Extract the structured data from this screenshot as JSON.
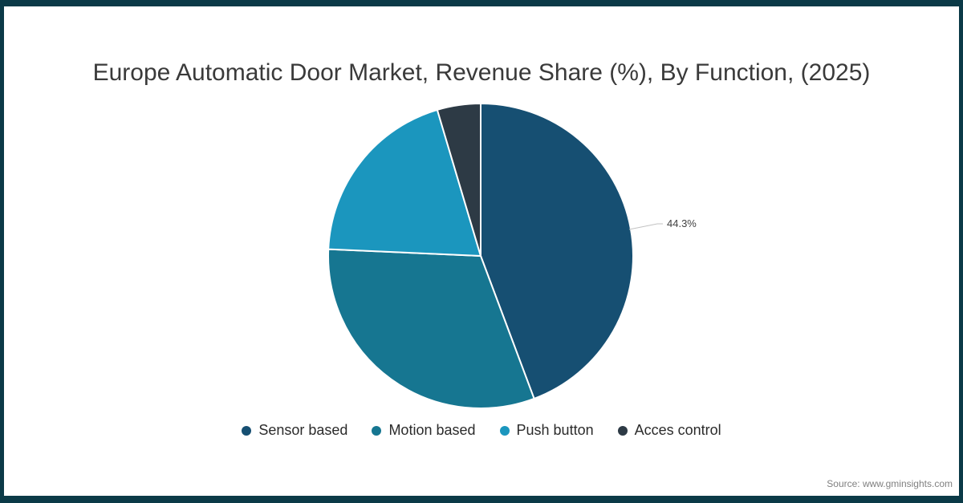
{
  "frame": {
    "border_color": "#0b3a47",
    "background": "#ffffff"
  },
  "title": "Europe Automatic Door Market, Revenue Share (%), By Function, (2025)",
  "chart_data": {
    "type": "pie",
    "categories": [
      "Sensor based",
      "Motion based",
      "Push button",
      "Acces control"
    ],
    "values": [
      44.3,
      31.4,
      19.7,
      4.6
    ],
    "colors": [
      "#164f72",
      "#167691",
      "#1b96be",
      "#2d3a45"
    ],
    "start_angle_deg": 0,
    "direction": "clockwise",
    "legend_position": "bottom",
    "labeled_slice": {
      "category": "Sensor based",
      "label": "44.3%"
    }
  },
  "source": "Source: www.gminsights.com"
}
